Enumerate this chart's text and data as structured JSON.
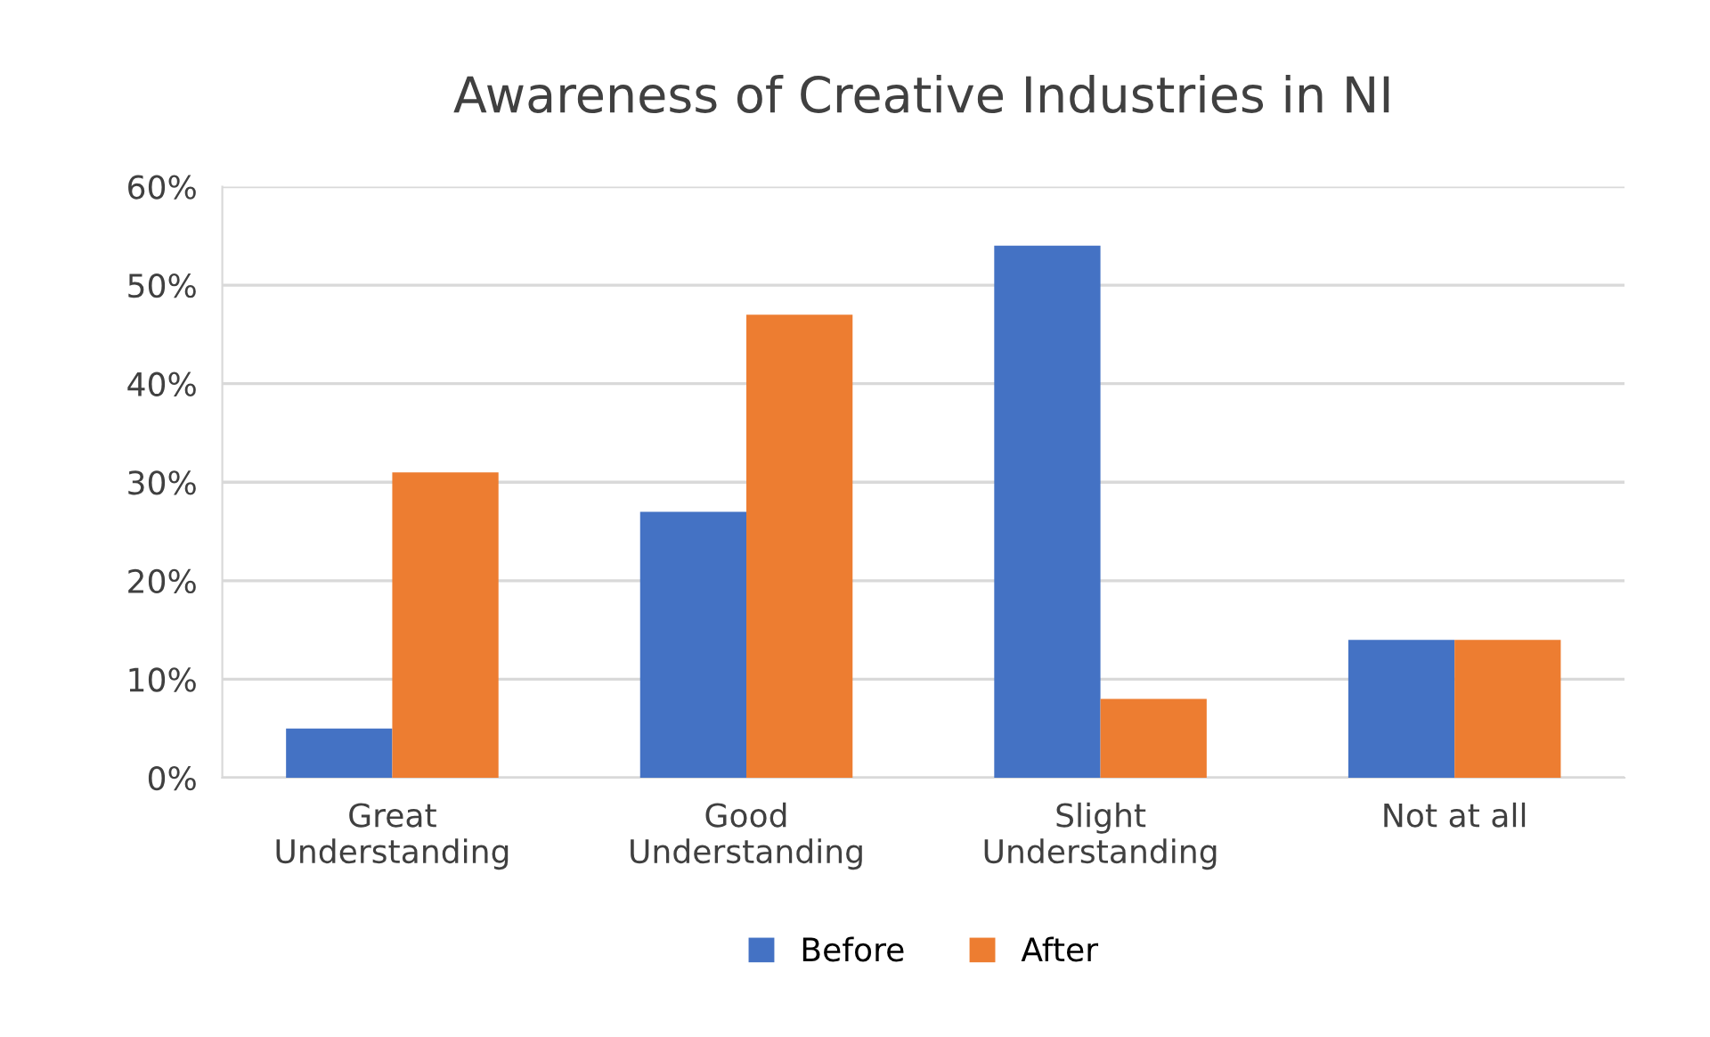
{
  "chart_data": {
    "type": "bar",
    "title": "Awareness of Creative Industries in NI",
    "categories": [
      "Great\nUnderstanding",
      "Good\nUnderstanding",
      "Slight\nUnderstanding",
      "Not at all"
    ],
    "series": [
      {
        "name": "Before",
        "color": "#4472c4",
        "values": [
          5,
          27,
          54,
          14
        ]
      },
      {
        "name": "After",
        "color": "#ed7d31",
        "values": [
          31,
          47,
          8,
          14
        ]
      }
    ],
    "ylim": [
      0,
      60
    ],
    "yticks": [
      {
        "value": 0,
        "label": "0%"
      },
      {
        "value": 10,
        "label": "10%"
      },
      {
        "value": 20,
        "label": "20%"
      },
      {
        "value": 30,
        "label": "30%"
      },
      {
        "value": 40,
        "label": "40%"
      },
      {
        "value": 50,
        "label": "50%"
      },
      {
        "value": 60,
        "label": "60%"
      }
    ],
    "grid": "y",
    "legend": "bottom"
  }
}
